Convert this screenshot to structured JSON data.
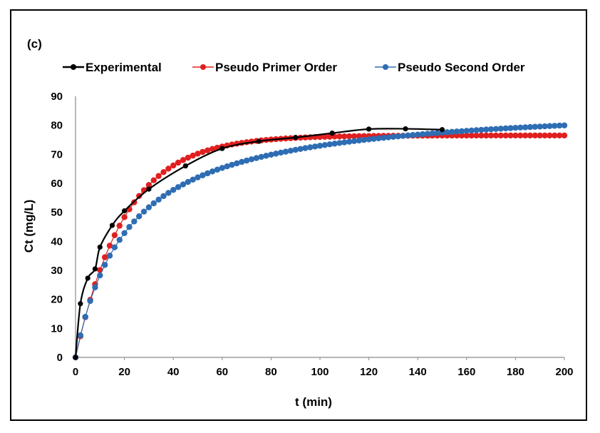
{
  "chart_data": {
    "type": "line",
    "panel_label": "(c)",
    "title": "",
    "xlabel": "t (min)",
    "ylabel": "Ct (mg/L)",
    "xlim": [
      0,
      200
    ],
    "ylim": [
      0,
      90
    ],
    "xticks": [
      0,
      20,
      40,
      60,
      80,
      100,
      120,
      140,
      160,
      180,
      200
    ],
    "yticks": [
      0,
      10,
      20,
      30,
      40,
      50,
      60,
      70,
      80,
      90
    ],
    "grid": false,
    "legend_position": "top",
    "series": [
      {
        "name": "Experimental",
        "color": "#000000",
        "smooth": true,
        "x": [
          0,
          2,
          5,
          8,
          10,
          15,
          20,
          30,
          45,
          60,
          75,
          90,
          105,
          120,
          135,
          150
        ],
        "y": [
          0,
          18.5,
          27.3,
          30.5,
          38.0,
          45.5,
          50.5,
          58.0,
          66.0,
          72.0,
          74.5,
          75.8,
          77.3,
          78.7,
          78.8,
          78.5
        ]
      },
      {
        "name": "Pseudo Primer Order",
        "color": "#e02020",
        "model": "pfo",
        "qe": 76.5,
        "k": 0.05,
        "xmax": 200,
        "step": 2
      },
      {
        "name": "Pseudo Second Order",
        "color": "#2e6db3",
        "model": "pso",
        "qe": 88.5,
        "k": 0.00053,
        "xmax": 200,
        "step": 2
      }
    ]
  }
}
